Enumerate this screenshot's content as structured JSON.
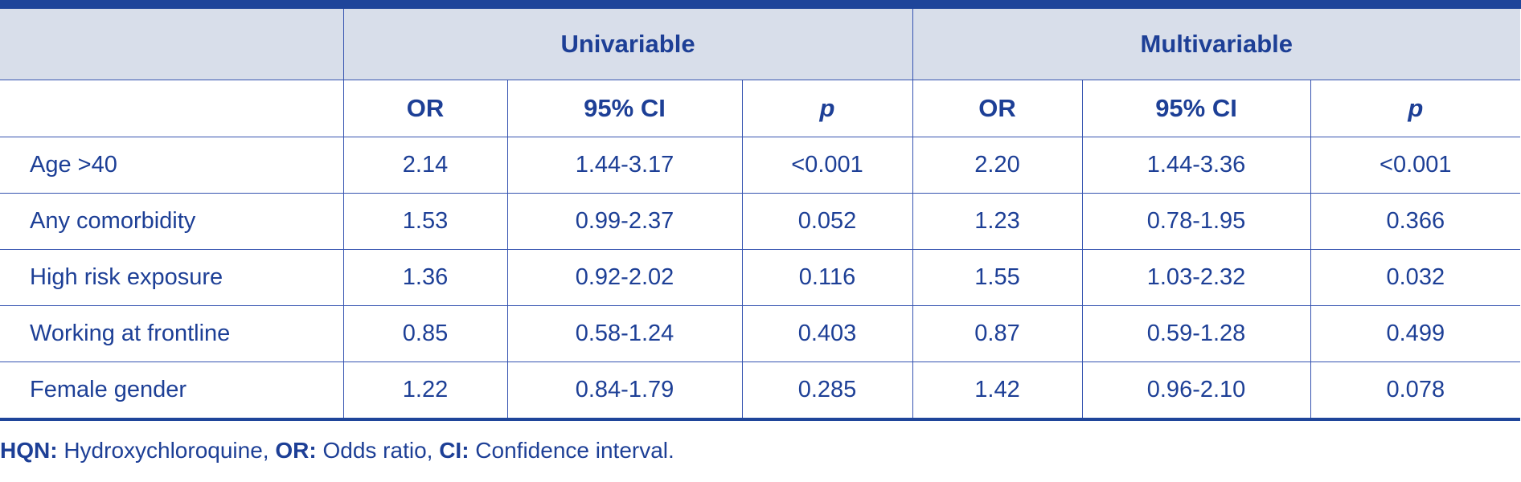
{
  "table": {
    "group_headers": [
      "",
      "Univariable",
      "Multivariable"
    ],
    "sub_headers": [
      "",
      "OR",
      "95% CI",
      "p",
      "OR",
      "95% CI",
      "p"
    ],
    "rows": [
      {
        "label": "Age >40",
        "uni_or": "2.14",
        "uni_ci": "1.44-3.17",
        "uni_p": "<0.001",
        "multi_or": "2.20",
        "multi_ci": "1.44-3.36",
        "multi_p": "<0.001"
      },
      {
        "label": "Any comorbidity",
        "uni_or": "1.53",
        "uni_ci": "0.99-2.37",
        "uni_p": "0.052",
        "multi_or": "1.23",
        "multi_ci": "0.78-1.95",
        "multi_p": "0.366"
      },
      {
        "label": "High risk exposure",
        "uni_or": "1.36",
        "uni_ci": "0.92-2.02",
        "uni_p": "0.116",
        "multi_or": "1.55",
        "multi_ci": "1.03-2.32",
        "multi_p": "0.032"
      },
      {
        "label": "Working at frontline",
        "uni_or": "0.85",
        "uni_ci": "0.58-1.24",
        "uni_p": "0.403",
        "multi_or": "0.87",
        "multi_ci": "0.59-1.28",
        "multi_p": "0.499"
      },
      {
        "label": "Female gender",
        "uni_or": "1.22",
        "uni_ci": "0.84-1.79",
        "uni_p": "0.285",
        "multi_or": "1.42",
        "multi_ci": "0.96-2.10",
        "multi_p": "0.078"
      }
    ]
  },
  "footnote": [
    {
      "abbr": "HQN:",
      "text": " Hydroxychloroquine, "
    },
    {
      "abbr": "OR:",
      "text": " Odds ratio, "
    },
    {
      "abbr": "CI:",
      "text": " Confidence interval."
    }
  ],
  "colors": {
    "header_text": "#1d3f96",
    "rule": "#1f459a",
    "header_fill": "#d8deea",
    "grid": "#3553b0"
  }
}
